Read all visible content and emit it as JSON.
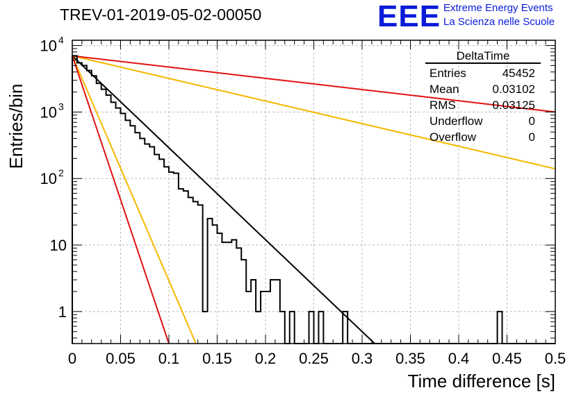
{
  "title": "TREV-01-2019-05-02-00050",
  "logo": {
    "mark": "EEE",
    "line1": "Extreme Energy Events",
    "line2": "La Scienza nelle Scuole",
    "color": "#0b1bd9"
  },
  "stats_box": {
    "title": "DeltaTime",
    "rows": [
      {
        "label": "Entries",
        "value": "45452"
      },
      {
        "label": "Mean",
        "value": "0.03102"
      },
      {
        "label": "RMS",
        "value": "0.03125"
      },
      {
        "label": "Underflow",
        "value": "0"
      },
      {
        "label": "Overflow",
        "value": "0"
      }
    ]
  },
  "chart_data": {
    "type": "line",
    "xlabel": "Time difference [s]",
    "ylabel": "Entries/bin",
    "xlim": [
      0,
      0.5
    ],
    "ylim": [
      0.33,
      12000
    ],
    "yscale": "log",
    "grid": true,
    "x_ticks": [
      "0",
      "0.05",
      "0.1",
      "0.15",
      "0.2",
      "0.25",
      "0.3",
      "0.35",
      "0.4",
      "0.45",
      "0.5"
    ],
    "y_ticks": [
      {
        "value": 1,
        "label": "1"
      },
      {
        "value": 10,
        "label": "10"
      },
      {
        "value": 100,
        "label": "10",
        "exp": "2"
      },
      {
        "value": 1000,
        "label": "10",
        "exp": "3"
      },
      {
        "value": 10000,
        "label": "10",
        "exp": "4"
      }
    ],
    "histogram": {
      "bin_width": 0.005,
      "color": "#000000",
      "counts": [
        7000,
        5500,
        5000,
        4200,
        3500,
        2700,
        2200,
        1800,
        1400,
        1150,
        950,
        750,
        620,
        490,
        400,
        330,
        300,
        230,
        195,
        150,
        125,
        120,
        70,
        65,
        52,
        45,
        40,
        1,
        25,
        20,
        15,
        11,
        11,
        12,
        9,
        6,
        2,
        3,
        1,
        2,
        2,
        3,
        3,
        1,
        0,
        1,
        0,
        0,
        0,
        1,
        0,
        1,
        0,
        0,
        0,
        0,
        1,
        0,
        0,
        0,
        0,
        0,
        0,
        0,
        0,
        0,
        0,
        0,
        0,
        0,
        0,
        0,
        0,
        0,
        0,
        0,
        0,
        0,
        0,
        0,
        0,
        0,
        0,
        0,
        0,
        0,
        0,
        0,
        1,
        0,
        0,
        0,
        0,
        0,
        0,
        0,
        0,
        0,
        0,
        0
      ]
    },
    "fits": [
      {
        "color": "#000000",
        "x": [
          0,
          0.313
        ],
        "y": [
          7000,
          0.33
        ]
      },
      {
        "color": "#f5b800",
        "x": [
          0,
          0.5
        ],
        "y": [
          7000,
          140
        ]
      },
      {
        "color": "#f5b800",
        "x": [
          0,
          0.128
        ],
        "y": [
          7000,
          0.33
        ]
      },
      {
        "color": "#e01010",
        "x": [
          0,
          0.5
        ],
        "y": [
          7000,
          1000
        ]
      },
      {
        "color": "#e01010",
        "x": [
          0,
          0.1
        ],
        "y": [
          7000,
          0.33
        ]
      }
    ]
  }
}
